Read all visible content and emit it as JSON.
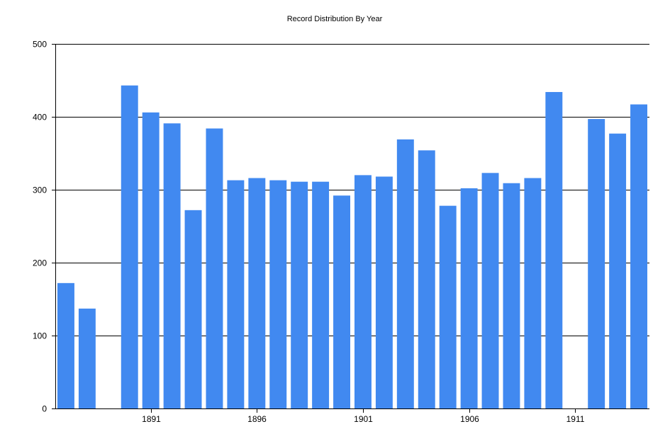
{
  "chart_data": {
    "type": "bar",
    "title": "Record Distribution By Year",
    "xlabel": "",
    "ylabel": "",
    "x": [
      1887,
      1888,
      1889,
      1890,
      1891,
      1892,
      1893,
      1894,
      1895,
      1896,
      1897,
      1898,
      1899,
      1900,
      1901,
      1902,
      1903,
      1904,
      1905,
      1906,
      1907,
      1908,
      1909,
      1910,
      1911,
      1912,
      1913,
      1914
    ],
    "values": [
      172,
      137,
      0,
      443,
      406,
      391,
      272,
      384,
      313,
      316,
      313,
      311,
      311,
      292,
      320,
      318,
      369,
      354,
      278,
      302,
      323,
      309,
      316,
      434,
      0,
      397,
      377,
      417
    ],
    "xticks": [
      "1891",
      "1896",
      "1901",
      "1906",
      "1911"
    ],
    "xtick_values": [
      1891,
      1896,
      1901,
      1906,
      1911
    ],
    "yticks": [
      "0",
      "100",
      "200",
      "300",
      "400",
      "500"
    ],
    "ytick_values": [
      0,
      100,
      200,
      300,
      400,
      500
    ],
    "ylim": [
      0,
      500
    ],
    "xlim": [
      1886.5,
      1914.5
    ],
    "grid": "horizontal",
    "legend": "none",
    "bar_color": "#4189f0",
    "grid_color": "#000000"
  }
}
